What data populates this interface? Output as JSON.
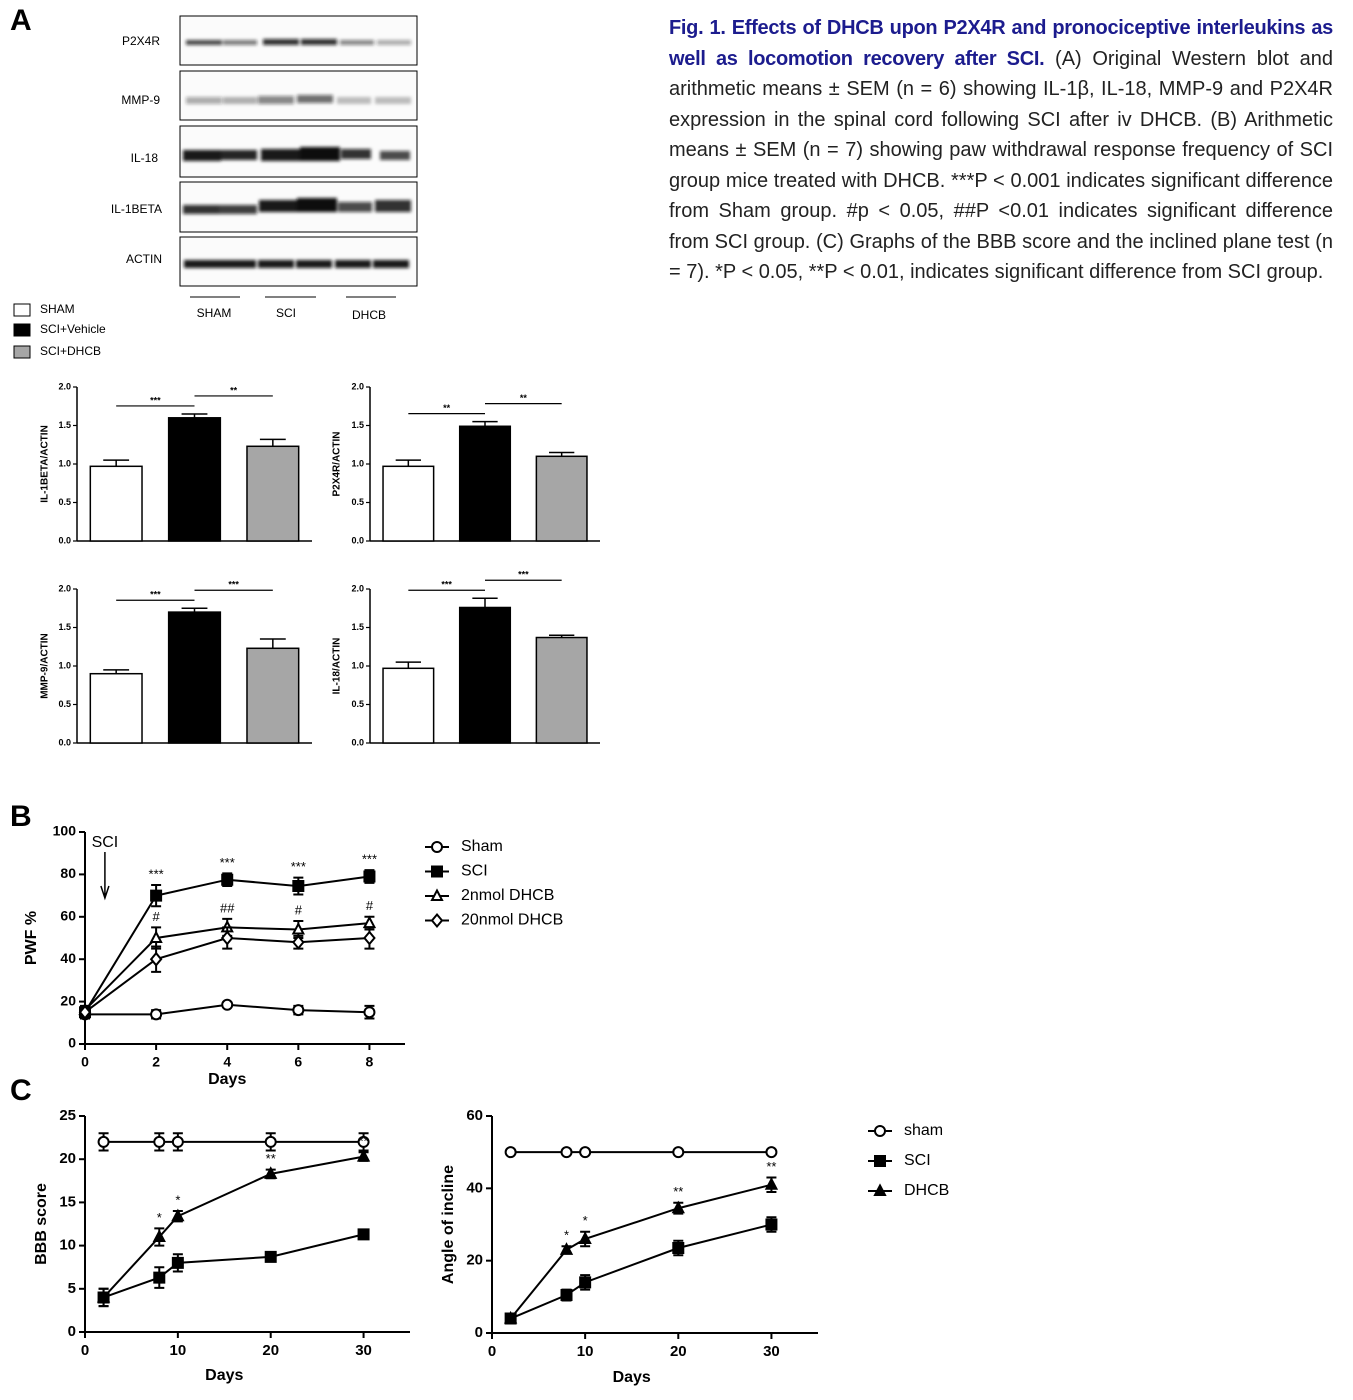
{
  "panel_labels": [
    "A",
    "B",
    "C"
  ],
  "caption": {
    "title": "Fig. 1. Effects of DHCB upon P2X4R and pronociceptive interleukins as well as locomotion recovery after SCI.",
    "body": "(A) Original Western blot and arithmetic means ± SEM (n = 6) showing IL-1β, IL-18, MMP-9 and P2X4R expression in the spinal cord following SCI after iv DHCB. (B) Arithmetic means ± SEM (n = 7) showing paw withdrawal response frequency of SCI group mice treated with DHCB. ***P < 0.001 indicates significant difference from Sham group. #p < 0.05, ##P <0.01 indicates significant difference from SCI group. (C) Graphs of the BBB score and the inclined plane test (n = 7). *P < 0.05, **P < 0.01, indicates significant difference from SCI group."
  },
  "western_blot": {
    "rows": [
      "P2X4R",
      "MMP-9",
      "IL-18",
      "IL-1BETA",
      "ACTIN"
    ],
    "groups": [
      "SHAM",
      "SCI",
      "DHCB"
    ]
  },
  "legend_a": {
    "items": [
      {
        "name": "SHAM",
        "color": "#ffffff"
      },
      {
        "name": "SCI+Vehicle",
        "color": "#000000"
      },
      {
        "name": "SCI+DHCB",
        "color": "#a6a6a6"
      }
    ]
  },
  "chart_data": [
    {
      "type": "bar",
      "ylabel": "IL-1BETA/ACTIN",
      "values": [
        0.97,
        1.6,
        1.23
      ],
      "errors": [
        0.08,
        0.05,
        0.09
      ],
      "significance": [
        "***",
        "**"
      ],
      "ylim": [
        0,
        2
      ],
      "yticks": [
        {
          "value": 0,
          "label": "0.0"
        },
        {
          "value": 0.5,
          "label": "0.5"
        },
        {
          "value": 1,
          "label": "1.0"
        },
        {
          "value": 1.5,
          "label": "1.5"
        },
        {
          "value": 2,
          "label": "2.0"
        }
      ]
    },
    {
      "type": "bar",
      "ylabel": "P2X4R/ACTIN",
      "values": [
        0.97,
        1.49,
        1.1
      ],
      "errors": [
        0.08,
        0.06,
        0.05
      ],
      "significance": [
        "**",
        "**"
      ],
      "ylim": [
        0,
        2
      ],
      "yticks": [
        {
          "value": 0,
          "label": "0.0"
        },
        {
          "value": 0.5,
          "label": "0.5"
        },
        {
          "value": 1,
          "label": "1.0"
        },
        {
          "value": 1.5,
          "label": "1.5"
        },
        {
          "value": 2,
          "label": "2.0"
        }
      ]
    },
    {
      "type": "bar",
      "ylabel": "MMP-9/ACTIN",
      "values": [
        0.9,
        1.7,
        1.23
      ],
      "errors": [
        0.05,
        0.05,
        0.12
      ],
      "significance": [
        "***",
        "***"
      ],
      "ylim": [
        0,
        2
      ],
      "yticks": [
        {
          "value": 0,
          "label": "0.0"
        },
        {
          "value": 0.5,
          "label": "0.5"
        },
        {
          "value": 1,
          "label": "1.0"
        },
        {
          "value": 1.5,
          "label": "1.5"
        },
        {
          "value": 2,
          "label": "2.0"
        }
      ]
    },
    {
      "type": "bar",
      "ylabel": "IL-18/ACTIN",
      "values": [
        0.97,
        1.76,
        1.37
      ],
      "errors": [
        0.08,
        0.12,
        0.03
      ],
      "significance": [
        "***",
        "***"
      ],
      "ylim": [
        0,
        2
      ],
      "yticks": [
        {
          "value": 0,
          "label": "0.0"
        },
        {
          "value": 0.5,
          "label": "0.5"
        },
        {
          "value": 1,
          "label": "1.0"
        },
        {
          "value": 1.5,
          "label": "1.5"
        },
        {
          "value": 2,
          "label": "2.0"
        }
      ]
    },
    {
      "type": "line",
      "xlabel": "Days",
      "ylabel": "PWF %",
      "x": [
        0,
        2,
        4,
        6,
        8
      ],
      "xlim": [
        0,
        9
      ],
      "xticks": [
        0,
        2,
        4,
        6,
        8
      ],
      "ylim": [
        0,
        100
      ],
      "yticks": [
        0,
        20,
        40,
        60,
        80,
        100
      ],
      "annotations": [
        {
          "text": "SCI",
          "x": 0.56
        }
      ],
      "series": [
        {
          "name": "Sham",
          "marker": "circle-open",
          "values": [
            14,
            14,
            18.5,
            16,
            15
          ],
          "errors": [
            2,
            2,
            1,
            2,
            3
          ]
        },
        {
          "name": "SCI",
          "marker": "square",
          "values": [
            15,
            70,
            77.5,
            74.5,
            79
          ],
          "errors": [
            2,
            5,
            3,
            4,
            3
          ],
          "significance": [
            null,
            "***",
            "***",
            "***",
            "***"
          ]
        },
        {
          "name": "2nmol DHCB",
          "marker": "triangle-open",
          "values": [
            16,
            50,
            55,
            54,
            57
          ],
          "errors": [
            2,
            5,
            4,
            4,
            3
          ],
          "significance": [
            null,
            "#",
            "##",
            "#",
            "#"
          ]
        },
        {
          "name": "20nmol DHCB",
          "marker": "diamond-open",
          "values": [
            15,
            40,
            50,
            48,
            50
          ],
          "errors": [
            2,
            6,
            5,
            3,
            5
          ]
        }
      ]
    },
    {
      "type": "line",
      "xlabel": "Days",
      "ylabel": "BBB score",
      "x": [
        2,
        8,
        10,
        20,
        30
      ],
      "xlim": [
        0,
        35
      ],
      "xticks": [
        0,
        10,
        20,
        30
      ],
      "ylim": [
        0,
        25
      ],
      "yticks": [
        0,
        5,
        10,
        15,
        20,
        25
      ],
      "series": [
        {
          "marker": "circle-open",
          "values": [
            22,
            22,
            22,
            22,
            22
          ],
          "errors": [
            1,
            1,
            1,
            1,
            1
          ]
        },
        {
          "marker": "square",
          "values": [
            4,
            6.3,
            8,
            8.7,
            11.3
          ],
          "errors": [
            1,
            1.2,
            1,
            0.5,
            0.5
          ]
        },
        {
          "marker": "triangle",
          "values": [
            4,
            11,
            13.4,
            18.3,
            20.3
          ],
          "errors": [
            1,
            1,
            0.6,
            0.5,
            0.5
          ],
          "significance": [
            null,
            "*",
            "*",
            "**",
            "**"
          ]
        }
      ]
    },
    {
      "type": "line",
      "xlabel": "Days",
      "ylabel": "Angle of  incline",
      "x": [
        2,
        8,
        10,
        20,
        30
      ],
      "xlim": [
        0,
        35
      ],
      "xticks": [
        0,
        10,
        20,
        30
      ],
      "ylim": [
        0,
        60
      ],
      "yticks": [
        0,
        20,
        40,
        60
      ],
      "series": [
        {
          "name": "sham",
          "marker": "circle-open",
          "values": [
            50,
            50,
            50,
            50,
            50
          ],
          "errors": [
            0.5,
            0.5,
            0.5,
            0.5,
            0.5
          ]
        },
        {
          "name": "SCI",
          "marker": "square",
          "values": [
            4,
            10.5,
            14,
            23.5,
            30
          ],
          "errors": [
            0.5,
            1.5,
            2,
            2,
            2
          ]
        },
        {
          "name": "DHCB",
          "marker": "triangle",
          "values": [
            4,
            23,
            26,
            34.5,
            41
          ],
          "errors": [
            0.5,
            1,
            2,
            1.5,
            2
          ],
          "significance": [
            null,
            "*",
            "*",
            "**",
            "**"
          ]
        }
      ]
    }
  ]
}
